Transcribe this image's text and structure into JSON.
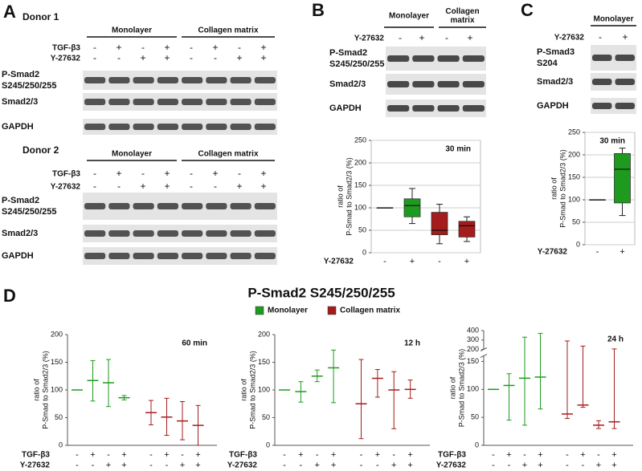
{
  "panel_a": {
    "letter": "A",
    "donors": [
      {
        "title": "Donor 1",
        "groups": [
          "Monolayer",
          "Collagen matrix"
        ],
        "rows": [
          {
            "label": "TGF-β3",
            "signs": [
              "-",
              "+",
              "-",
              "+",
              "-",
              "+",
              "-",
              "+"
            ]
          },
          {
            "label": "Y-27632",
            "signs": [
              "-",
              "-",
              "+",
              "+",
              "-",
              "-",
              "+",
              "+"
            ]
          }
        ],
        "blots": [
          [
            "P-Smad2",
            "S245/250/255"
          ],
          [
            "Smad2/3"
          ],
          [
            "GAPDH"
          ]
        ]
      },
      {
        "title": "Donor 2",
        "groups": [
          "Monolayer",
          "Collagen matrix"
        ],
        "rows": [
          {
            "label": "TGF-β3",
            "signs": [
              "-",
              "+",
              "-",
              "+",
              "-",
              "+",
              "-",
              "+"
            ]
          },
          {
            "label": "Y-27632",
            "signs": [
              "-",
              "-",
              "+",
              "+",
              "-",
              "-",
              "+",
              "+"
            ]
          }
        ],
        "blots": [
          [
            "P-Smad2",
            "S245/250/255"
          ],
          [
            "Smad2/3"
          ],
          [
            "GAPDH"
          ]
        ]
      }
    ]
  },
  "panel_b": {
    "letter": "B",
    "groups": [
      [
        "Monolayer"
      ],
      [
        "Collagen",
        "matrix"
      ]
    ],
    "row": {
      "label": "Y-27632",
      "signs": [
        "-",
        "+",
        "-",
        "+"
      ]
    },
    "blots": [
      [
        "P-Smad2",
        "S245/250/255"
      ],
      [
        "Smad2/3"
      ],
      [
        "GAPDH"
      ]
    ]
  },
  "panel_c": {
    "letter": "C",
    "groups": [
      [
        "Monolayer"
      ]
    ],
    "row": {
      "label": "Y-27632",
      "signs": [
        "-",
        "+"
      ]
    },
    "blots": [
      [
        "P-Smad3",
        "S204"
      ],
      [
        "Smad2/3"
      ],
      [
        "GAPDH"
      ]
    ]
  },
  "panel_d": {
    "letter": "D",
    "title": "P-Smad2 S245/250/255",
    "legend": [
      {
        "name": "Monolayer",
        "color": "#1e9a1e"
      },
      {
        "name": "Collagen matrix",
        "color": "#a51c1c"
      }
    ]
  },
  "chart_data": [
    {
      "type": "box",
      "annotation": "30 min",
      "ylabel": [
        "ratio of",
        "P-Smad to Smad2/3 (%)"
      ],
      "ylim": [
        0,
        250
      ],
      "yticks": [
        0,
        50,
        100,
        150,
        200,
        250
      ],
      "grid": true,
      "xrows": [
        {
          "label": "Y-27632",
          "categories": [
            "-",
            "+",
            "-",
            "+"
          ]
        }
      ],
      "boxes": [
        {
          "color": "#1e9a1e",
          "min": 100,
          "q1": 100,
          "median": 100,
          "q3": 100,
          "max": 100
        },
        {
          "color": "#1e9a1e",
          "min": 65,
          "q1": 80,
          "median": 105,
          "q3": 120,
          "max": 143
        },
        {
          "color": "#a51c1c",
          "min": 20,
          "q1": 40,
          "median": 50,
          "q3": 90,
          "max": 108
        },
        {
          "color": "#a51c1c",
          "min": 25,
          "q1": 35,
          "median": 60,
          "q3": 70,
          "max": 80
        }
      ]
    },
    {
      "type": "box",
      "annotation": "30 min",
      "ylabel": [
        "ratio of",
        "P-Smad to Smad2/3 (%)"
      ],
      "ylim": [
        0,
        250
      ],
      "yticks": [
        0,
        50,
        100,
        150,
        200,
        250
      ],
      "grid": true,
      "xrows": [
        {
          "label": "Y-27632",
          "categories": [
            "-",
            "+"
          ]
        }
      ],
      "boxes": [
        {
          "color": "#1e9a1e",
          "min": 100,
          "q1": 100,
          "median": 100,
          "q3": 100,
          "max": 100
        },
        {
          "color": "#1e9a1e",
          "min": 65,
          "q1": 93,
          "median": 168,
          "q3": 203,
          "max": 215
        }
      ]
    },
    {
      "type": "errorbar",
      "annotation": "60 min",
      "ylabel": [
        "ratio of",
        "P-Smad to Smad2/3 (%)"
      ],
      "ylim": [
        0,
        200
      ],
      "yticks": [
        0,
        50,
        100,
        150,
        200
      ],
      "grid": false,
      "xrows": [
        {
          "label": "TGF-β3",
          "categories": [
            "-",
            "+",
            "-",
            "+",
            "-",
            "+",
            "-",
            "+"
          ]
        },
        {
          "label": "Y-27632",
          "categories": [
            "-",
            "-",
            "+",
            "+",
            "-",
            "-",
            "+",
            "+"
          ]
        }
      ],
      "series": [
        {
          "color": "#1e9a1e",
          "mean": [
            100,
            117,
            113,
            86
          ],
          "low": [
            100,
            80,
            70,
            82
          ],
          "high": [
            100,
            153,
            155,
            90
          ]
        },
        {
          "color": "#a51c1c",
          "mean": [
            59,
            51,
            44,
            36
          ],
          "low": [
            37,
            18,
            10,
            0
          ],
          "high": [
            81,
            85,
            79,
            72
          ]
        }
      ]
    },
    {
      "type": "errorbar",
      "annotation": "12 h",
      "ylabel": [
        "ratio of",
        "P-Smad to Smad2/3 (%)"
      ],
      "ylim": [
        0,
        200
      ],
      "yticks": [
        0,
        50,
        100,
        150,
        200
      ],
      "grid": false,
      "xrows": [
        {
          "label": "TGF-β3",
          "categories": [
            "-",
            "+",
            "-",
            "+",
            "-",
            "+",
            "-",
            "+"
          ]
        },
        {
          "label": "Y-27632",
          "categories": [
            "-",
            "-",
            "+",
            "+",
            "-",
            "-",
            "+",
            "+"
          ]
        }
      ],
      "series": [
        {
          "color": "#1e9a1e",
          "mean": [
            100,
            97,
            125,
            140
          ],
          "low": [
            100,
            78,
            115,
            77
          ],
          "high": [
            100,
            115,
            136,
            172
          ]
        },
        {
          "color": "#a51c1c",
          "mean": [
            75,
            121,
            100,
            101
          ],
          "low": [
            12,
            87,
            30,
            85
          ],
          "high": [
            155,
            137,
            133,
            118
          ]
        }
      ]
    },
    {
      "type": "errorbar",
      "annotation": "24 h",
      "ylabel": [
        "ratio of",
        "P-Smad to Smad2/3 (%)"
      ],
      "ylim": [
        0,
        400
      ],
      "ybreak": [
        160,
        200
      ],
      "yticks": [
        0,
        50,
        100,
        150,
        200,
        300,
        400
      ],
      "grid": false,
      "xrows": [
        {
          "label": "TGF-β3",
          "categories": [
            "-",
            "+",
            "-",
            "+",
            "-",
            "+",
            "-",
            "+"
          ]
        },
        {
          "label": "Y-27632",
          "categories": [
            "-",
            "-",
            "+",
            "+",
            "-",
            "-",
            "+",
            "+"
          ]
        }
      ],
      "series": [
        {
          "color": "#1e9a1e",
          "mean": [
            100,
            107,
            120,
            122
          ],
          "low": [
            100,
            45,
            36,
            65
          ],
          "high": [
            100,
            128,
            330,
            370
          ]
        },
        {
          "color": "#a51c1c",
          "mean": [
            56,
            72,
            36,
            42
          ],
          "low": [
            48,
            68,
            30,
            30
          ],
          "high": [
            290,
            235,
            44,
            205
          ]
        }
      ]
    }
  ]
}
